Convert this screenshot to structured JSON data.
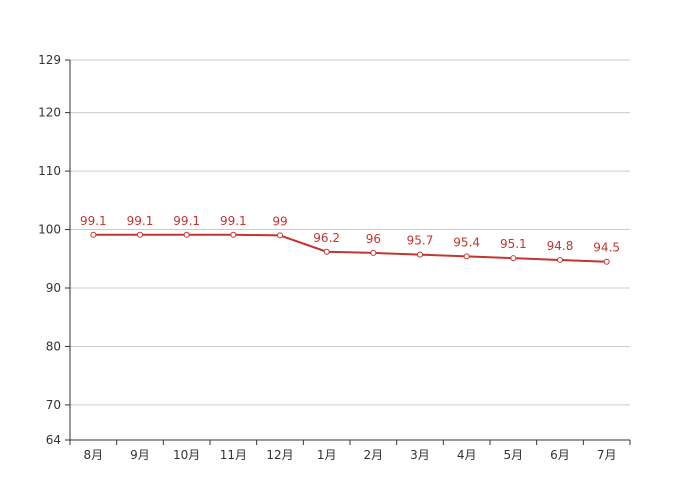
{
  "chart_data": {
    "type": "line",
    "title": "",
    "xlabel": "",
    "ylabel": "",
    "categories": [
      "8月",
      "9月",
      "10月",
      "11月",
      "12月",
      "1月",
      "2月",
      "3月",
      "4月",
      "5月",
      "6月",
      "7月"
    ],
    "series": [
      {
        "values": [
          99.1,
          99.1,
          99.1,
          99.1,
          99,
          96.2,
          96,
          95.7,
          95.4,
          95.1,
          94.8,
          94.5
        ],
        "color": "#c23531"
      }
    ],
    "data_labels": [
      "99.1",
      "99.1",
      "99.1",
      "99.1",
      "99",
      "96.2",
      "96",
      "95.7",
      "95.4",
      "95.1",
      "94.8",
      "94.5"
    ],
    "ylim": [
      64,
      129
    ],
    "y_ticks": [
      "64",
      "70",
      "80",
      "90",
      "100",
      "110",
      "120",
      "129"
    ],
    "grid": true,
    "legend": "none"
  }
}
